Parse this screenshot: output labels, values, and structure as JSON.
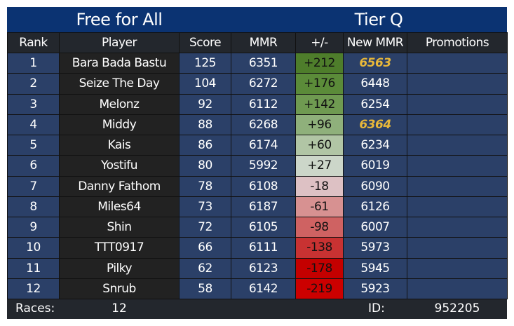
{
  "header": {
    "left": "Free for All",
    "right": "Tier Q"
  },
  "table": {
    "columns": [
      "Rank",
      "Player",
      "Score",
      "MMR",
      "+/-",
      "New MMR",
      "Promotions"
    ],
    "rows": [
      [
        "1",
        "Bara Bada Bastu",
        "125",
        "6351",
        "+212",
        "6563"
      ],
      [
        "2",
        "Seize The Day",
        "104",
        "6272",
        "+176",
        "6448"
      ],
      [
        "3",
        "Melonz",
        "92",
        "6112",
        "+142",
        "6254"
      ],
      [
        "4",
        "Middy",
        "88",
        "6268",
        "+96",
        "6364"
      ],
      [
        "5",
        "Kais",
        "86",
        "6174",
        "+60",
        "6234"
      ],
      [
        "6",
        "Yostifu",
        "80",
        "5992",
        "+27",
        "6019"
      ],
      [
        "7",
        "Danny Fathom",
        "78",
        "6108",
        "-18",
        "6090"
      ],
      [
        "8",
        "Miles64",
        "73",
        "6187",
        "-61",
        "6126"
      ],
      [
        "9",
        "Shin",
        "72",
        "6105",
        "-98",
        "6007"
      ],
      [
        "10",
        "TTT0917",
        "66",
        "6111",
        "-138",
        "5973"
      ],
      [
        "11",
        "Pilky",
        "62",
        "6123",
        "-178",
        "5945"
      ],
      [
        "12",
        "Snrub",
        "58",
        "6142",
        "-219",
        "5923"
      ]
    ],
    "delta_colors": [
      "#4e7d2b",
      "#5b8b39",
      "#6f9a51",
      "#8fb07b",
      "#b1c5a5",
      "#ccd6c9",
      "#ddc1c4",
      "#d79191",
      "#cf6262",
      "#c83232",
      "#c40000",
      "#cc0000"
    ],
    "highlight_rows": [
      0,
      3
    ],
    "highlight_color": "#e8b83a"
  },
  "footer": {
    "races_label": "Races:",
    "races": "12",
    "id_label": "ID:",
    "id": "952205"
  }
}
